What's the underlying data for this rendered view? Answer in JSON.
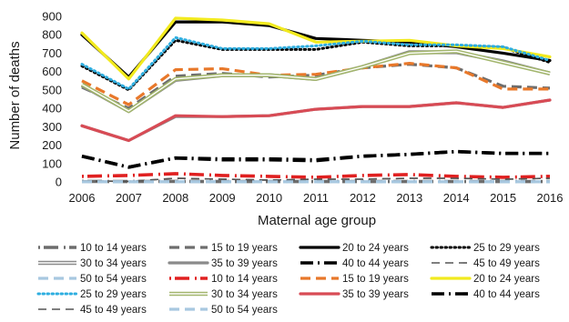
{
  "chart_data": {
    "type": "line",
    "title": "",
    "xlabel": "Maternal age group",
    "ylabel": "Number of deaths",
    "x": [
      "2006",
      "2007",
      "2008",
      "2009",
      "2010",
      "2011",
      "2012",
      "2013",
      "2014",
      "2015",
      "2016"
    ],
    "ylim": [
      0,
      900
    ],
    "yticks": [
      "0",
      "100",
      "200",
      "300",
      "400",
      "500",
      "600",
      "700",
      "800",
      "900"
    ],
    "grid": false,
    "legend_position": "bottom",
    "series": [
      {
        "name": "10 to 14 years",
        "color": "#6d6d6d",
        "dash": "dot-start",
        "values": [
          3,
          2,
          3,
          2,
          2,
          2,
          2,
          2,
          2,
          2,
          2
        ]
      },
      {
        "name": "15 to 19 years",
        "color": "#6d6d6d",
        "dash": "long-dash",
        "values": [
          515,
          400,
          575,
          590,
          570,
          580,
          620,
          640,
          620,
          520,
          510
        ]
      },
      {
        "name": "20 to 24 years",
        "color": "#000000",
        "dash": "solid",
        "values": [
          800,
          570,
          870,
          870,
          850,
          780,
          770,
          760,
          735,
          700,
          660
        ]
      },
      {
        "name": "25 to 29 years",
        "color": "#000000",
        "dash": "dotted",
        "values": [
          630,
          500,
          770,
          720,
          720,
          720,
          760,
          740,
          740,
          730,
          650
        ]
      },
      {
        "name": "30 to 34 years",
        "color": "#8a8a8a",
        "dash": "double",
        "values": [
          525,
          385,
          555,
          580,
          580,
          560,
          625,
          705,
          705,
          655,
          590
        ]
      },
      {
        "name": "35 to 39 years",
        "color": "#8a8a8a",
        "dash": "solid",
        "values": [
          305,
          225,
          355,
          355,
          360,
          395,
          410,
          410,
          430,
          405,
          445
        ]
      },
      {
        "name": "40 to 44 years",
        "color": "#000000",
        "dash": "dash-dot",
        "values": [
          140,
          80,
          130,
          120,
          120,
          115,
          140,
          150,
          165,
          155,
          155
        ]
      },
      {
        "name": "45 to 49 years",
        "color": "#555555",
        "dash": "long-dash-thin",
        "values": [
          5,
          3,
          20,
          15,
          10,
          15,
          15,
          20,
          20,
          15,
          20
        ]
      },
      {
        "name": "50 to 54 years",
        "color": "#a8c8e0",
        "dash": "long-dash",
        "values": [
          1,
          1,
          1,
          1,
          1,
          1,
          1,
          1,
          1,
          1,
          1
        ]
      },
      {
        "name": "10 to 14 years",
        "color": "#e02020",
        "dash": "dot-start",
        "values": [
          30,
          35,
          45,
          35,
          30,
          25,
          35,
          40,
          30,
          25,
          30
        ]
      },
      {
        "name": "15 to 19 years",
        "color": "#e8782a",
        "dash": "long-dash",
        "values": [
          550,
          420,
          610,
          615,
          580,
          585,
          620,
          645,
          620,
          505,
          505
        ]
      },
      {
        "name": "20 to 24 years",
        "color": "#f2ea1e",
        "dash": "solid",
        "values": [
          810,
          560,
          890,
          880,
          860,
          760,
          765,
          770,
          740,
          725,
          680
        ]
      },
      {
        "name": "25 to 29 years",
        "color": "#2eaee0",
        "dash": "dotted",
        "values": [
          640,
          505,
          785,
          725,
          725,
          740,
          765,
          745,
          745,
          735,
          660
        ]
      },
      {
        "name": "30 to 34 years",
        "color": "#a2b56c",
        "dash": "double",
        "values": [
          530,
          385,
          560,
          580,
          580,
          560,
          625,
          700,
          710,
          650,
          590
        ]
      },
      {
        "name": "35 to 39 years",
        "color": "#d84b55",
        "dash": "solid",
        "values": [
          305,
          225,
          360,
          355,
          360,
          395,
          410,
          410,
          430,
          405,
          445
        ]
      },
      {
        "name": "40 to 44 years",
        "color": "#000000",
        "dash": "dash-dot",
        "values": [
          140,
          80,
          130,
          125,
          125,
          120,
          140,
          150,
          165,
          155,
          155
        ]
      },
      {
        "name": "45 to 49 years",
        "color": "#555555",
        "dash": "long-dash-thin",
        "values": [
          5,
          3,
          20,
          15,
          10,
          15,
          15,
          20,
          20,
          15,
          20
        ]
      },
      {
        "name": "50 to 54 years",
        "color": "#a8c8e0",
        "dash": "long-dash",
        "values": [
          1,
          1,
          1,
          1,
          1,
          1,
          1,
          1,
          1,
          1,
          1
        ]
      }
    ]
  }
}
